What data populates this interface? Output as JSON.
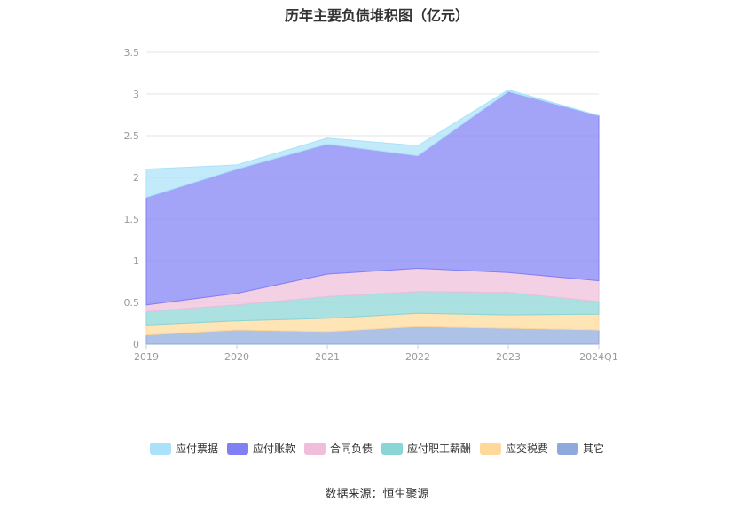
{
  "source": "数据来源：恒生聚源",
  "chart_data": {
    "type": "area",
    "stacked": true,
    "title": "历年主要负债堆积图（亿元）",
    "xlabel": "",
    "ylabel": "",
    "categories": [
      "2019",
      "2020",
      "2021",
      "2022",
      "2023",
      "2024Q1"
    ],
    "ylim": [
      0,
      3.5
    ],
    "yticks": [
      "0",
      "0.5",
      "1",
      "1.5",
      "2",
      "2.5",
      "3",
      "3.5"
    ],
    "grid": true,
    "legend_position": "bottom",
    "series": [
      {
        "name": "其它",
        "values": [
          0.11,
          0.17,
          0.15,
          0.21,
          0.19,
          0.17
        ],
        "color": "#8fa9dc"
      },
      {
        "name": "应交税费",
        "values": [
          0.12,
          0.11,
          0.16,
          0.16,
          0.16,
          0.19
        ],
        "color": "#ffd99a"
      },
      {
        "name": "应付职工薪酬",
        "values": [
          0.16,
          0.19,
          0.26,
          0.26,
          0.27,
          0.15
        ],
        "color": "#8ad6d6"
      },
      {
        "name": "合同负债",
        "values": [
          0.08,
          0.14,
          0.27,
          0.28,
          0.24,
          0.25
        ],
        "color": "#f0bedb"
      },
      {
        "name": "应付账款",
        "values": [
          1.29,
          1.49,
          1.56,
          1.35,
          2.17,
          1.98
        ],
        "color": "#8080f5"
      },
      {
        "name": "应付票据",
        "values": [
          0.34,
          0.05,
          0.07,
          0.12,
          0.02,
          0.0
        ],
        "color": "#aae2fa"
      }
    ]
  }
}
